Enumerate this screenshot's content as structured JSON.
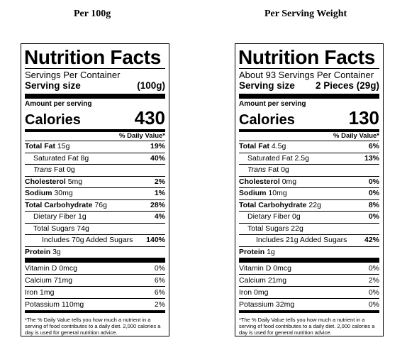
{
  "left": {
    "column_title": "Per 100g",
    "title": "Nutrition Facts",
    "servings_per_container": "Servings Per Container",
    "serving_size_label": "Serving size",
    "serving_size_value": "(100g)",
    "amount_per_serving": "Amount per serving",
    "calories_label": "Calories",
    "calories_value": "430",
    "daily_value_header": "% Daily Value*",
    "total_fat": {
      "label": "Total Fat",
      "amount": "15g",
      "pct": "19%"
    },
    "saturated_fat": {
      "label": "Saturated Fat",
      "amount": "8g",
      "pct": "40%"
    },
    "trans_fat": {
      "label_italic": "Trans",
      "label": "Fat",
      "amount": "0g"
    },
    "cholesterol": {
      "label": "Cholesterol",
      "amount": "5mg",
      "pct": "2%"
    },
    "sodium": {
      "label": "Sodium",
      "amount": "30mg",
      "pct": "1%"
    },
    "total_carb": {
      "label": "Total Carbohydrate",
      "amount": "76g",
      "pct": "28%"
    },
    "dietary_fiber": {
      "label": "Dietary Fiber",
      "amount": "1g",
      "pct": "4%"
    },
    "total_sugars": {
      "label": "Total Sugars",
      "amount": "74g"
    },
    "added_sugars": {
      "label": "Includes 70g Added Sugars",
      "pct": "140%"
    },
    "protein": {
      "label": "Protein",
      "amount": "3g"
    },
    "vitamin_d": {
      "label": "Vitamin D 0mcg",
      "pct": "0%"
    },
    "calcium": {
      "label": "Calcium 71mg",
      "pct": "6%"
    },
    "iron": {
      "label": "Iron 1mg",
      "pct": "6%"
    },
    "potassium": {
      "label": "Potassium 110mg",
      "pct": "2%"
    },
    "footnote": "*The % Daily Value tells you how much a nutrient in a serving of food contributes to a daily diet. 2,000 calories a day is used for general nutrition advice."
  },
  "right": {
    "column_title": "Per Serving Weight",
    "title": "Nutrition Facts",
    "servings_per_container": "About 93 Servings Per Container",
    "serving_size_label": "Serving size",
    "serving_size_value": "2 Pieces (29g)",
    "amount_per_serving": "Amount per serving",
    "calories_label": "Calories",
    "calories_value": "130",
    "daily_value_header": "% Daily Value*",
    "total_fat": {
      "label": "Total Fat",
      "amount": "4.5g",
      "pct": "6%"
    },
    "saturated_fat": {
      "label": "Saturated Fat",
      "amount": "2.5g",
      "pct": "13%"
    },
    "trans_fat": {
      "label_italic": "Trans",
      "label": "Fat",
      "amount": "0g"
    },
    "cholesterol": {
      "label": "Cholesterol",
      "amount": "0mg",
      "pct": "0%"
    },
    "sodium": {
      "label": "Sodium",
      "amount": "10mg",
      "pct": "0%"
    },
    "total_carb": {
      "label": "Total Carbohydrate",
      "amount": "22g",
      "pct": "8%"
    },
    "dietary_fiber": {
      "label": "Dietary Fiber",
      "amount": "0g",
      "pct": "0%"
    },
    "total_sugars": {
      "label": "Total Sugars",
      "amount": "22g"
    },
    "added_sugars": {
      "label": "Includes 21g Added Sugars",
      "pct": "42%"
    },
    "protein": {
      "label": "Protein",
      "amount": "1g"
    },
    "vitamin_d": {
      "label": "Vitamin D 0mcg",
      "pct": "0%"
    },
    "calcium": {
      "label": "Calcium 21mg",
      "pct": "2%"
    },
    "iron": {
      "label": "Iron 0mg",
      "pct": "0%"
    },
    "potassium": {
      "label": "Potassium 32mg",
      "pct": "0%"
    },
    "footnote": "*The % Daily Value tells you how much a nutrient in a serving of food contributes to a daily diet. 2,000 calories a day is used for general nutrition advice."
  }
}
